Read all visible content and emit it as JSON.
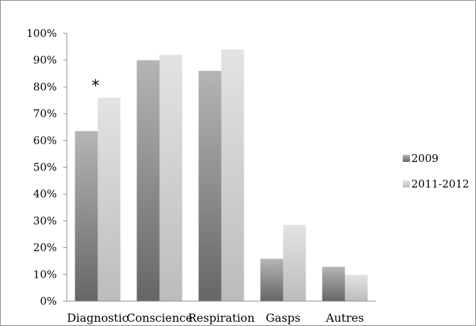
{
  "chart_data": {
    "type": "bar",
    "categories": [
      "Diagnostic",
      "Conscience",
      "Respiration",
      "Gasps",
      "Autres"
    ],
    "series": [
      {
        "name": "2009",
        "values": [
          63.5,
          90,
          86,
          15.8,
          12.8
        ],
        "color": "#7f7f7f"
      },
      {
        "name": "2011-2012",
        "values": [
          76,
          92,
          94,
          28.5,
          9.8
        ],
        "color": "#cccccc"
      }
    ],
    "ylim": [
      0,
      100
    ],
    "yticks": [
      0,
      10,
      20,
      30,
      40,
      50,
      60,
      70,
      80,
      90,
      100
    ],
    "ytick_labels": [
      "0%",
      "10%",
      "20%",
      "30%",
      "40%",
      "50%",
      "60%",
      "70%",
      "80%",
      "90%",
      "100%"
    ],
    "grid": false,
    "legend_position": "right",
    "annotations": [
      {
        "text": "*",
        "category": "Diagnostic"
      }
    ]
  }
}
